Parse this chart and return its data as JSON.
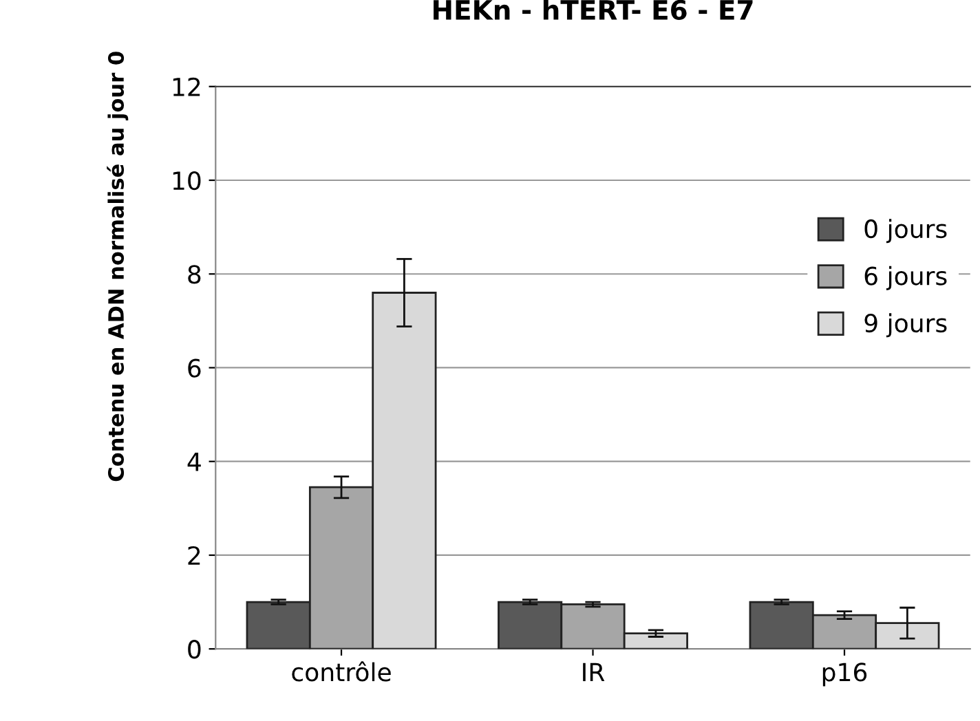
{
  "chart_data": {
    "type": "bar",
    "title": "HEKn - hTERT- E6 - E7",
    "ylabel": "Contenu en ADN normalisé au jour 0",
    "categories": [
      "contrôle",
      "IR",
      "p16"
    ],
    "series": [
      {
        "name": "0 jours",
        "color": "#595959",
        "values": [
          1.0,
          1.0,
          1.0
        ],
        "errors": [
          0.05,
          0.05,
          0.05
        ]
      },
      {
        "name": "6 jours",
        "color": "#a6a6a6",
        "values": [
          3.45,
          0.95,
          0.72
        ],
        "errors": [
          0.23,
          0.05,
          0.08
        ]
      },
      {
        "name": "9 jours",
        "color": "#d9d9d9",
        "values": [
          7.6,
          0.33,
          0.55
        ],
        "errors": [
          0.72,
          0.07,
          0.33
        ]
      }
    ],
    "ylim": [
      0,
      12
    ],
    "yticks": [
      0,
      2,
      4,
      6,
      8,
      10,
      12
    ],
    "grid": "y",
    "legend": "right"
  }
}
